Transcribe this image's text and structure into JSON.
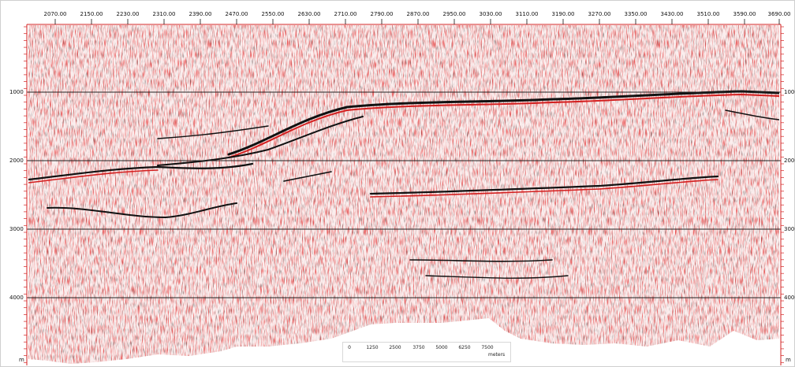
{
  "top_axis": {
    "labels": [
      "2070.00",
      "2150.00",
      "2230.00",
      "2310.00",
      "2390.00",
      "2470.00",
      "2550.00",
      "2630.00",
      "2710.00",
      "2790.00",
      "2870.00",
      "2950.00",
      "3030.00",
      "3110.00",
      "3190.00",
      "3270.00",
      "3350.00",
      "3430.00",
      "3510.00",
      "3590.00",
      "3690.00"
    ],
    "values": [
      2070,
      2150,
      2230,
      2310,
      2390,
      2470,
      2550,
      2630,
      2710,
      2790,
      2870,
      2950,
      3030,
      3110,
      3190,
      3270,
      3350,
      3430,
      3510,
      3590,
      3690
    ]
  },
  "depth_axis": {
    "labels": [
      "1000",
      "2000",
      "3000",
      "4000"
    ],
    "values": [
      1000,
      2000,
      3000,
      4000
    ],
    "unit": "m"
  },
  "scale_bar": {
    "labels": [
      "0",
      "1250",
      "2500",
      "3750",
      "5000",
      "6250",
      "7500"
    ],
    "unit": "meters"
  },
  "colors": {
    "seismic_positive": "#d32020",
    "seismic_negative": "#111111",
    "background": "#ffffff",
    "gridline": "#222222"
  }
}
